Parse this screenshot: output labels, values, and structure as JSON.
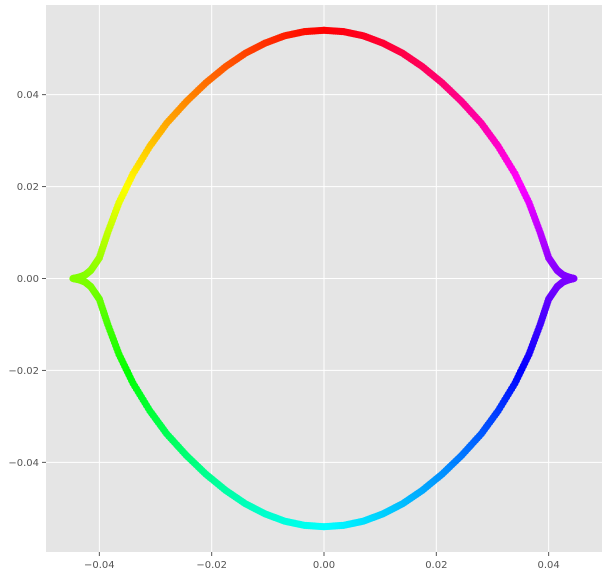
{
  "chart_data": {
    "type": "scatter",
    "title": "",
    "xlabel": "",
    "ylabel": "",
    "xlim": [
      -0.0495,
      0.0495
    ],
    "ylim": [
      -0.0595,
      0.0595
    ],
    "grid": true,
    "style": "ggplot",
    "colormap": "hsv",
    "x_ticks": [
      -0.04,
      -0.02,
      0.0,
      0.02,
      0.04
    ],
    "x_tick_labels": [
      "−0.04",
      "−0.02",
      "0.00",
      "0.02",
      "0.04"
    ],
    "y_ticks": [
      -0.04,
      -0.02,
      0.0,
      0.02,
      0.04
    ],
    "y_tick_labels": [
      "−0.04",
      "−0.02",
      "0.00",
      "0.02",
      "0.04"
    ],
    "colors": {
      "plot_background": "#e5e5e5",
      "grid": "#ffffff",
      "tick_text": "#555555"
    },
    "series": [
      {
        "points": [
          [
            0.0,
            0.054
          ],
          [
            0.0035,
            0.0537
          ],
          [
            0.007,
            0.0528
          ],
          [
            0.0105,
            0.0512
          ],
          [
            0.014,
            0.049
          ],
          [
            0.0175,
            0.0461
          ],
          [
            0.021,
            0.0426
          ],
          [
            0.0245,
            0.0385
          ],
          [
            0.028,
            0.0338
          ],
          [
            0.031,
            0.0288
          ],
          [
            0.034,
            0.0228
          ],
          [
            0.0365,
            0.0165
          ],
          [
            0.0385,
            0.01
          ],
          [
            0.04,
            0.0045
          ],
          [
            0.0415,
            0.0018
          ],
          [
            0.0425,
            0.0008
          ],
          [
            0.0435,
            0.0003
          ],
          [
            0.0445,
            0.0
          ],
          [
            0.0435,
            -0.0003
          ],
          [
            0.0425,
            -0.0008
          ],
          [
            0.0415,
            -0.0018
          ],
          [
            0.04,
            -0.0045
          ],
          [
            0.0385,
            -0.01
          ],
          [
            0.0365,
            -0.0165
          ],
          [
            0.034,
            -0.0228
          ],
          [
            0.031,
            -0.0288
          ],
          [
            0.028,
            -0.0338
          ],
          [
            0.0245,
            -0.0385
          ],
          [
            0.021,
            -0.0426
          ],
          [
            0.0175,
            -0.0461
          ],
          [
            0.014,
            -0.049
          ],
          [
            0.0105,
            -0.0512
          ],
          [
            0.007,
            -0.0528
          ],
          [
            0.0035,
            -0.0537
          ],
          [
            0.0,
            -0.054
          ],
          [
            -0.0035,
            -0.0537
          ],
          [
            -0.007,
            -0.0528
          ],
          [
            -0.0105,
            -0.0512
          ],
          [
            -0.014,
            -0.049
          ],
          [
            -0.0175,
            -0.0461
          ],
          [
            -0.021,
            -0.0426
          ],
          [
            -0.0245,
            -0.0385
          ],
          [
            -0.028,
            -0.0338
          ],
          [
            -0.031,
            -0.0288
          ],
          [
            -0.034,
            -0.0228
          ],
          [
            -0.0365,
            -0.0165
          ],
          [
            -0.0385,
            -0.01
          ],
          [
            -0.04,
            -0.0045
          ],
          [
            -0.0415,
            -0.0018
          ],
          [
            -0.0425,
            -0.0008
          ],
          [
            -0.0435,
            -0.0003
          ],
          [
            -0.0447,
            0.0
          ],
          [
            -0.0435,
            0.0003
          ],
          [
            -0.0425,
            0.0008
          ],
          [
            -0.0415,
            0.0018
          ],
          [
            -0.04,
            0.0045
          ],
          [
            -0.0385,
            0.01
          ],
          [
            -0.0365,
            0.0165
          ],
          [
            -0.034,
            0.0228
          ],
          [
            -0.031,
            0.0288
          ],
          [
            -0.028,
            0.0338
          ],
          [
            -0.0245,
            0.0385
          ],
          [
            -0.021,
            0.0426
          ],
          [
            -0.0175,
            0.0461
          ],
          [
            -0.014,
            0.049
          ],
          [
            -0.0105,
            0.0512
          ],
          [
            -0.007,
            0.0528
          ],
          [
            -0.0035,
            0.0537
          ]
        ]
      }
    ]
  }
}
